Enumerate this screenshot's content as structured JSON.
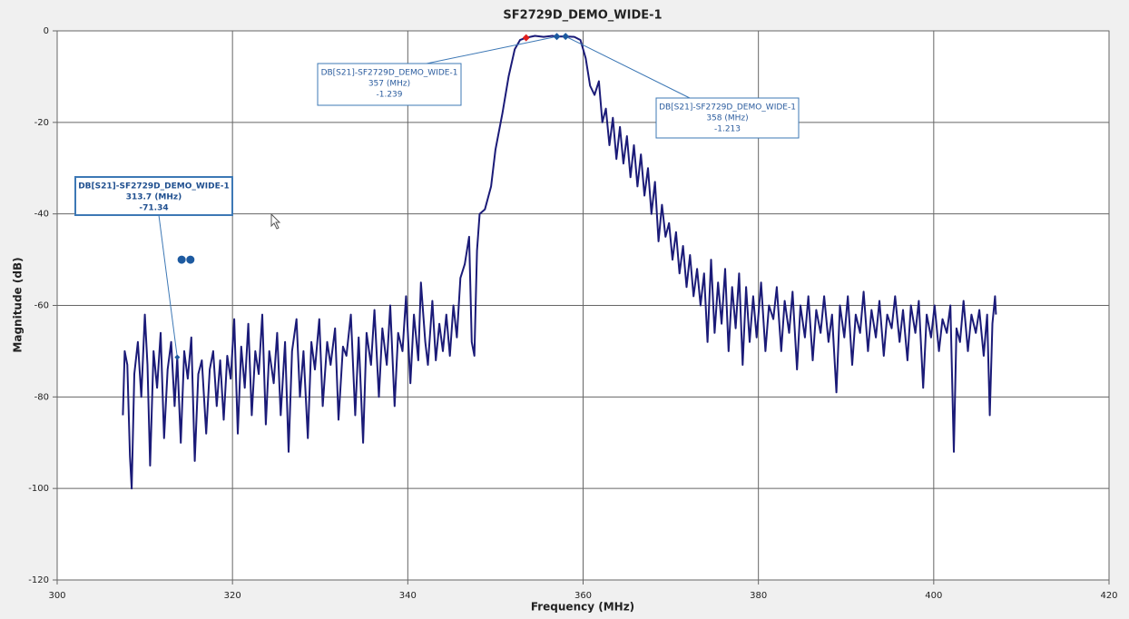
{
  "chart_data": {
    "type": "line",
    "title": "SF2729D_DEMO_WIDE-1",
    "x_label": "Frequency (MHz)",
    "y_label": "Magnitude (dB)",
    "xlim": [
      300,
      420
    ],
    "ylim": [
      -120,
      0
    ],
    "xticks": [
      300,
      320,
      340,
      360,
      380,
      400,
      420
    ],
    "yticks": [
      0,
      -20,
      -40,
      -60,
      -80,
      -100,
      -120
    ],
    "grid": true,
    "series": [
      {
        "color": "#1b1b78",
        "x": [
          307.5,
          307.7,
          308,
          308.3,
          308.5,
          308.8,
          309.2,
          309.6,
          310,
          310.3,
          310.6,
          311,
          311.4,
          311.8,
          312.2,
          312.6,
          313,
          313.4,
          313.7,
          314.1,
          314.5,
          314.9,
          315.3,
          315.7,
          316.1,
          316.5,
          317,
          317.4,
          317.8,
          318.2,
          318.6,
          319,
          319.4,
          319.8,
          320.2,
          320.6,
          321,
          321.4,
          321.8,
          322.2,
          322.6,
          323,
          323.4,
          323.8,
          324.2,
          324.7,
          325.1,
          325.5,
          326,
          326.4,
          326.8,
          327.3,
          327.7,
          328.1,
          328.6,
          329,
          329.4,
          329.9,
          330.3,
          330.8,
          331.2,
          331.7,
          332.1,
          332.6,
          333,
          333.5,
          334,
          334.4,
          334.9,
          335.3,
          335.8,
          336.2,
          336.7,
          337.1,
          337.6,
          338,
          338.5,
          338.9,
          339.4,
          339.8,
          340.3,
          340.7,
          341.2,
          341.5,
          342,
          342.3,
          342.8,
          343.2,
          343.6,
          344,
          344.4,
          344.8,
          345.2,
          345.6,
          346,
          346.5,
          347,
          347.3,
          347.6,
          347.9,
          348.2,
          348.8,
          349.5,
          350,
          350.8,
          351.5,
          352.2,
          352.8,
          353.5,
          354.5,
          355.5,
          356.5,
          357,
          358,
          359,
          359.7,
          360.3,
          360.8,
          361.3,
          361.8,
          362.2,
          362.6,
          363,
          363.4,
          363.8,
          364.2,
          364.6,
          365,
          365.4,
          365.8,
          366.2,
          366.6,
          367,
          367.4,
          367.8,
          368.2,
          368.6,
          369,
          369.4,
          369.8,
          370.2,
          370.6,
          371,
          371.4,
          371.8,
          372.2,
          372.6,
          373,
          373.4,
          373.8,
          374.2,
          374.6,
          375,
          375.4,
          375.8,
          376.2,
          376.6,
          377,
          377.4,
          377.8,
          378.2,
          378.6,
          379,
          379.4,
          379.8,
          380.3,
          380.8,
          381.2,
          381.7,
          382.1,
          382.6,
          383,
          383.5,
          383.9,
          384.4,
          384.8,
          385.3,
          385.7,
          386.2,
          386.6,
          387.1,
          387.5,
          388,
          388.4,
          388.9,
          389.3,
          389.8,
          390.2,
          390.7,
          391.1,
          391.6,
          392,
          392.5,
          392.9,
          393.4,
          393.8,
          394.3,
          394.7,
          395.2,
          395.6,
          396.1,
          396.5,
          397,
          397.4,
          397.9,
          398.3,
          398.8,
          399.2,
          399.7,
          400.1,
          400.6,
          401,
          401.5,
          401.9,
          402.3,
          402.6,
          403,
          403.4,
          403.9,
          404.3,
          404.8,
          405.2,
          405.7,
          406.1,
          406.4,
          406.7,
          407,
          407.1
        ],
        "values": [
          -84,
          -70,
          -73,
          -93,
          -100,
          -75,
          -68,
          -80,
          -62,
          -73,
          -95,
          -70,
          -78,
          -66,
          -89,
          -74,
          -68,
          -82,
          -71.34,
          -90,
          -70,
          -76,
          -67,
          -94,
          -75,
          -72,
          -88,
          -74,
          -70,
          -82,
          -72,
          -85,
          -71,
          -76,
          -63,
          -88,
          -69,
          -78,
          -64,
          -84,
          -70,
          -75,
          -62,
          -86,
          -70,
          -77,
          -66,
          -84,
          -68,
          -92,
          -70,
          -63,
          -80,
          -70,
          -89,
          -68,
          -74,
          -63,
          -82,
          -68,
          -73,
          -65,
          -85,
          -69,
          -71,
          -62,
          -84,
          -67,
          -90,
          -66,
          -73,
          -61,
          -80,
          -65,
          -73,
          -60,
          -82,
          -66,
          -70,
          -58,
          -77,
          -62,
          -72,
          -55,
          -68,
          -73,
          -59,
          -72,
          -64,
          -70,
          -62,
          -71,
          -60,
          -67,
          -54,
          -51,
          -45,
          -68,
          -71,
          -48,
          -40,
          -39,
          -34,
          -26,
          -18,
          -10,
          -4,
          -2,
          -1.5,
          -1.1,
          -1.3,
          -1.1,
          -1.239,
          -1.213,
          -1.3,
          -2,
          -6,
          -12,
          -14,
          -11,
          -20,
          -17,
          -25,
          -19,
          -28,
          -21,
          -29,
          -23,
          -32,
          -25,
          -34,
          -27,
          -36,
          -30,
          -40,
          -33,
          -46,
          -38,
          -45,
          -42,
          -50,
          -44,
          -53,
          -47,
          -56,
          -49,
          -58,
          -52,
          -60,
          -53,
          -68,
          -50,
          -66,
          -55,
          -64,
          -52,
          -70,
          -56,
          -65,
          -53,
          -73,
          -56,
          -68,
          -58,
          -67,
          -55,
          -70,
          -60,
          -63,
          -56,
          -70,
          -59,
          -66,
          -57,
          -74,
          -60,
          -67,
          -58,
          -72,
          -61,
          -66,
          -58,
          -68,
          -62,
          -79,
          -60,
          -67,
          -58,
          -73,
          -62,
          -66,
          -57,
          -70,
          -61,
          -67,
          -59,
          -71,
          -62,
          -65,
          -58,
          -68,
          -61,
          -72,
          -60,
          -66,
          -59,
          -78,
          -62,
          -67,
          -60,
          -70,
          -63,
          -66,
          -60,
          -92,
          -65,
          -68,
          -59,
          -70,
          -62,
          -66,
          -61,
          -71,
          -62,
          -84,
          -64,
          -58,
          -62
        ]
      }
    ],
    "markers": [
      {
        "x": 353.5,
        "y": -1.5,
        "color": "#e0201f"
      },
      {
        "x": 314.2,
        "y": -50,
        "color": "#1d5aa0"
      },
      {
        "x": 315.2,
        "y": -50,
        "color": "#1d5aa0"
      }
    ],
    "annotations": [
      {
        "x": 357,
        "y": -1.239,
        "lines": [
          "DB[S21]-SF2729D_DEMO_WIDE-1",
          "357 (MHz)",
          "-1.239"
        ]
      },
      {
        "x": 358,
        "y": -1.213,
        "lines": [
          "DB[S21]-SF2729D_DEMO_WIDE-1",
          "358 (MHz)",
          "-1.213"
        ]
      },
      {
        "x": 313.7,
        "y": -71.34,
        "lines": [
          "DB[S21]-SF2729D_DEMO_WIDE-1",
          "313.7 (MHz)",
          "-71.34"
        ]
      }
    ]
  }
}
